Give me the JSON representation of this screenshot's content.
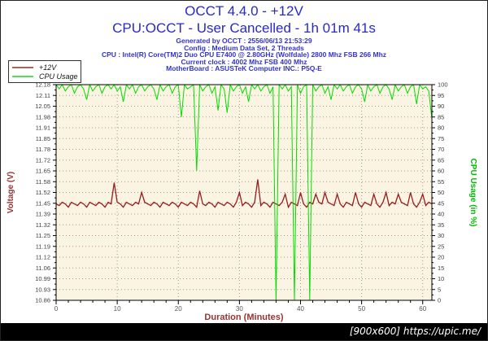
{
  "header": {
    "title_line1": "OCCT 4.4.0 - +12V",
    "title_line2": "CPU:OCCT - User Cancelled - 1h 01m 41s",
    "info_lines": [
      "Generated by OCCT : 2556/06/13 21:53:29",
      "Config : Medium Data Set, 2 Threads",
      "CPU : Intel(R) Core(TM)2 Duo CPU E7400 @ 2.80GHz (Wolfdale) 2800 Mhz FSB 266 Mhz",
      "Current clock : 4002 Mhz FSB 400 Mhz",
      "MotherBoard : ASUSTeK Computer INC.: P5Q-E"
    ]
  },
  "legend": {
    "items": [
      {
        "label": "+12V",
        "color": "#A66555"
      },
      {
        "label": "CPU Usage",
        "color": "#55DD55"
      }
    ]
  },
  "colors": {
    "title_blue": "#2828CC",
    "info_blue": "#3333CC",
    "axis_red": "#993333",
    "axis_green": "#00BB00",
    "voltage_line": "#9B1C1C",
    "cpu_line": "#00DD00",
    "plot_bg": "#FBF4E2",
    "grid": "#999999",
    "tick_label": "#404040"
  },
  "chart_data": {
    "type": "line",
    "title": "",
    "xlabel": "Duration (Minutes)",
    "ylabel_left": "Voltage (V)",
    "ylabel_right": "CPU Usage (in %)",
    "grid": "dotted",
    "legend_position": "top-left",
    "x_range": [
      0,
      61.5
    ],
    "x_major_ticks": [
      0,
      10,
      20,
      30,
      40,
      50,
      60
    ],
    "x_minor_step": 2,
    "y_left_range": [
      10.86,
      12.18
    ],
    "y_left_tick_labels": [
      "12.18",
      "12.11",
      "12.05",
      "11.98",
      "11.91",
      "11.85",
      "11.78",
      "11.72",
      "11.65",
      "11.58",
      "11.52",
      "11.45",
      "11.39",
      "11.32",
      "11.25",
      "11.19",
      "11.12",
      "11.06",
      "10.99",
      "10.93",
      "10.86"
    ],
    "y_right_range": [
      0,
      100
    ],
    "y_right_tick_labels": [
      "100",
      "95",
      "90",
      "85",
      "80",
      "75",
      "70",
      "65",
      "60",
      "55",
      "50",
      "45",
      "40",
      "35",
      "30",
      "25",
      "20",
      "15",
      "10",
      "5",
      "0"
    ],
    "series": [
      {
        "name": "+12V",
        "axis": "left",
        "color": "#9B1C1C",
        "x_start": 0,
        "x_step": 0.5,
        "values": [
          11.45,
          11.44,
          11.46,
          11.45,
          11.43,
          11.46,
          11.45,
          11.44,
          11.46,
          11.45,
          11.43,
          11.46,
          11.45,
          11.44,
          11.46,
          11.45,
          11.43,
          11.46,
          11.45,
          11.58,
          11.46,
          11.45,
          11.43,
          11.46,
          11.45,
          11.44,
          11.46,
          11.45,
          11.52,
          11.46,
          11.45,
          11.44,
          11.46,
          11.45,
          11.43,
          11.46,
          11.45,
          11.44,
          11.46,
          11.45,
          11.43,
          11.46,
          11.45,
          11.44,
          11.46,
          11.45,
          11.43,
          11.53,
          11.45,
          11.44,
          11.46,
          11.45,
          11.43,
          11.46,
          11.45,
          11.44,
          11.46,
          11.45,
          11.43,
          11.46,
          11.52,
          11.44,
          11.46,
          11.45,
          11.43,
          11.46,
          11.6,
          11.44,
          11.46,
          11.45,
          11.43,
          11.46,
          11.45,
          11.44,
          11.46,
          11.51,
          11.43,
          11.46,
          11.45,
          11.44,
          11.52,
          11.45,
          11.43,
          11.46,
          11.45,
          11.51,
          11.46,
          11.45,
          11.52,
          11.46,
          11.45,
          11.44,
          11.51,
          11.45,
          11.43,
          11.46,
          11.45,
          11.44,
          11.52,
          11.45,
          11.43,
          11.46,
          11.45,
          11.44,
          11.51,
          11.45,
          11.43,
          11.46,
          11.52,
          11.44,
          11.46,
          11.45,
          11.51,
          11.46,
          11.45,
          11.44,
          11.52,
          11.45,
          11.43,
          11.46,
          11.51,
          11.44,
          11.46,
          11.45
        ]
      },
      {
        "name": "CPU Usage",
        "axis": "right",
        "color": "#00DD00",
        "x_start": 0,
        "x_step": 0.5,
        "values": [
          100,
          98,
          100,
          97,
          99,
          100,
          96,
          99,
          100,
          98,
          93,
          100,
          97,
          99,
          100,
          96,
          99,
          100,
          98,
          100,
          97,
          99,
          92,
          100,
          98,
          100,
          96,
          99,
          100,
          97,
          99,
          100,
          98,
          93,
          100,
          97,
          99,
          100,
          96,
          99,
          100,
          85,
          100,
          98,
          99,
          100,
          60,
          100,
          97,
          99,
          100,
          96,
          99,
          88,
          100,
          98,
          87,
          100,
          97,
          99,
          100,
          96,
          99,
          92,
          100,
          98,
          100,
          97,
          99,
          100,
          96,
          99,
          0,
          100,
          98,
          100,
          97,
          99,
          0,
          100,
          96,
          99,
          100,
          0,
          100,
          97,
          99,
          100,
          96,
          99,
          93,
          100,
          98,
          100,
          97,
          99,
          100,
          96,
          99,
          100,
          98,
          92,
          100,
          97,
          99,
          100,
          96,
          99,
          100,
          98,
          93,
          100,
          97,
          99,
          100,
          96,
          99,
          100,
          91,
          100,
          98,
          99,
          97,
          84
        ]
      }
    ]
  },
  "footer": {
    "watermark": "[900x600] https://upic.me/"
  }
}
